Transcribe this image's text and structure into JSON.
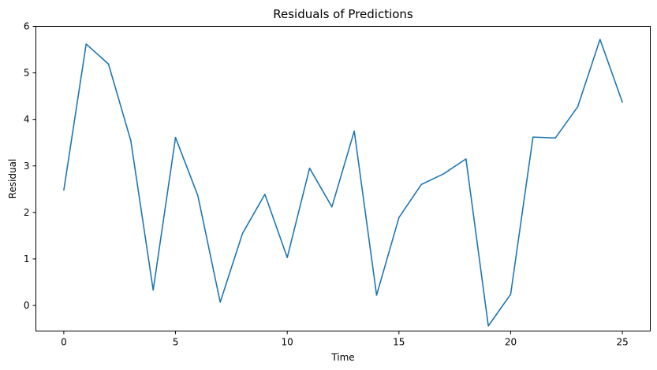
{
  "chart_data": {
    "type": "line",
    "title": "Residuals of Predictions",
    "xlabel": "Time",
    "ylabel": "Residual",
    "xlim": [
      -1.25,
      26.25
    ],
    "ylim": [
      -0.55,
      6.0
    ],
    "xticks": [
      0,
      5,
      10,
      15,
      20,
      25
    ],
    "yticks": [
      0,
      1,
      2,
      3,
      4,
      5,
      6
    ],
    "grid": false,
    "series": [
      {
        "color": "#1f77b4",
        "x": [
          0,
          1,
          2,
          3,
          4,
          5,
          6,
          7,
          8,
          9,
          10,
          11,
          12,
          13,
          14,
          15,
          16,
          17,
          18,
          19,
          20,
          21,
          22,
          23,
          24,
          25
        ],
        "y": [
          2.48,
          5.62,
          5.19,
          3.54,
          0.33,
          3.61,
          2.36,
          0.07,
          1.55,
          2.39,
          1.03,
          2.95,
          2.12,
          3.75,
          0.22,
          1.89,
          2.6,
          2.83,
          3.15,
          -0.44,
          0.24,
          3.62,
          3.6,
          4.27,
          5.72,
          4.37
        ]
      }
    ]
  }
}
